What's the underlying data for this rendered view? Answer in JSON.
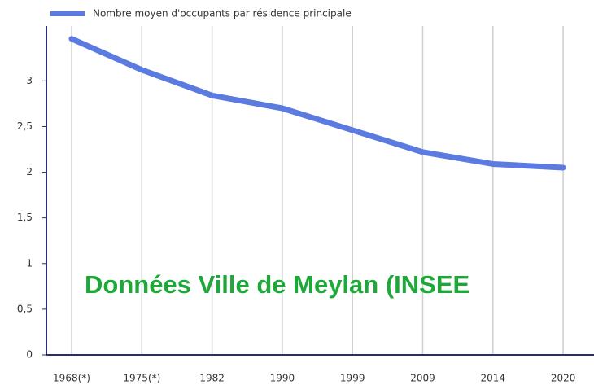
{
  "chart_data": {
    "type": "line",
    "categories": [
      "1968(*)",
      "1975(*)",
      "1982",
      "1990",
      "1999",
      "2009",
      "2014",
      "2020"
    ],
    "series": [
      {
        "name": "Nombre moyen d'occupants par résidence principale",
        "color": "#5b7be0",
        "values": [
          3.46,
          3.12,
          2.84,
          2.7,
          2.46,
          2.22,
          2.09,
          2.05
        ]
      }
    ],
    "ylim": [
      0,
      3.6
    ],
    "yticks": [
      0,
      {
        "value": 0.5,
        "label": "0,5"
      },
      1,
      {
        "value": 1.5,
        "label": "1,5"
      },
      2,
      {
        "value": 2.5,
        "label": "2,5"
      },
      3
    ],
    "grid": true,
    "annotation": "Données Ville de Meylan (INSEE"
  }
}
